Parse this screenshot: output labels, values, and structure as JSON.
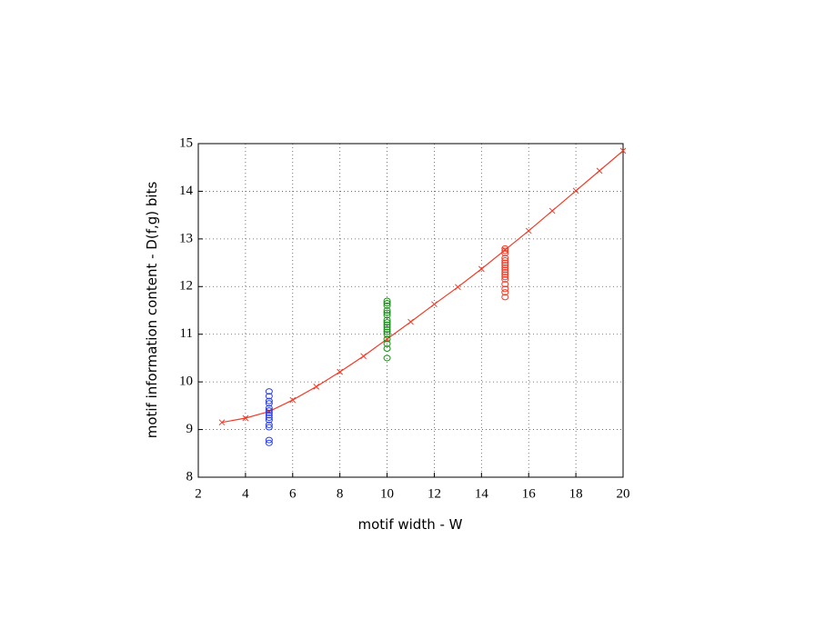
{
  "chart_data": {
    "type": "line",
    "xlabel": "motif width - W",
    "ylabel": "motif information content - D(f,g) bits",
    "xlim": [
      2,
      20
    ],
    "xticks": [
      2,
      4,
      6,
      8,
      10,
      12,
      14,
      16,
      18,
      20
    ],
    "ylim": [
      8,
      15
    ],
    "yticks": [
      8,
      9,
      10,
      11,
      12,
      13,
      14,
      15
    ],
    "grid": true,
    "series": [
      {
        "type": "line",
        "marker": "x",
        "color": "#f03c28",
        "x": [
          3,
          4,
          5,
          6,
          7,
          8,
          9,
          10,
          11,
          12,
          13,
          14,
          15,
          16,
          17,
          18,
          19,
          20
        ],
        "values": [
          9.15,
          9.24,
          9.38,
          9.62,
          9.9,
          10.21,
          10.54,
          10.9,
          11.26,
          11.63,
          11.99,
          12.37,
          12.77,
          13.17,
          13.59,
          14.01,
          14.43,
          14.85
        ]
      },
      {
        "type": "scatter",
        "marker": "o",
        "color": "#2a3ee0",
        "x": [
          5,
          5,
          5,
          5,
          5,
          5,
          5,
          5,
          5,
          5,
          5,
          5,
          5,
          5
        ],
        "values": [
          9.8,
          9.7,
          9.6,
          9.55,
          9.45,
          9.4,
          9.35,
          9.3,
          9.25,
          9.2,
          9.1,
          9.05,
          8.78,
          8.72
        ]
      },
      {
        "type": "scatter",
        "marker": "o",
        "color": "#1a8a1a",
        "x": [
          10,
          10,
          10,
          10,
          10,
          10,
          10,
          10,
          10,
          10,
          10,
          10,
          10,
          10,
          10,
          10,
          10
        ],
        "values": [
          10.5,
          10.7,
          10.8,
          10.9,
          11.0,
          11.05,
          11.1,
          11.15,
          11.2,
          11.25,
          11.3,
          11.4,
          11.45,
          11.5,
          11.6,
          11.65,
          11.7
        ]
      },
      {
        "type": "scatter",
        "marker": "o",
        "color": "#f03c28",
        "x": [
          15,
          15,
          15,
          15,
          15,
          15,
          15,
          15,
          15,
          15,
          15,
          15,
          15,
          15,
          15,
          15,
          15
        ],
        "values": [
          11.78,
          11.88,
          11.95,
          12.05,
          12.15,
          12.2,
          12.25,
          12.3,
          12.35,
          12.4,
          12.45,
          12.5,
          12.55,
          12.6,
          12.7,
          12.75,
          12.8
        ]
      }
    ]
  }
}
